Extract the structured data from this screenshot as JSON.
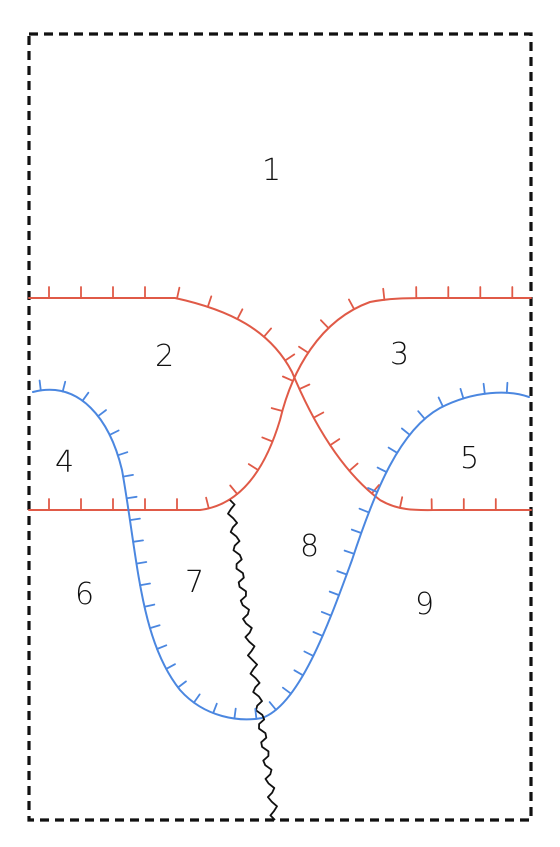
{
  "colors": {
    "border": "#111111",
    "red_curve": "#e05a47",
    "blue_curve": "#4b87e0",
    "wavy_line": "#111111",
    "background": "#ffffff"
  },
  "regions": [
    {
      "id": "region-1",
      "label": "1"
    },
    {
      "id": "region-2",
      "label": "2"
    },
    {
      "id": "region-3",
      "label": "3"
    },
    {
      "id": "region-4",
      "label": "4"
    },
    {
      "id": "region-5",
      "label": "5"
    },
    {
      "id": "region-6",
      "label": "6"
    },
    {
      "id": "region-7",
      "label": "7"
    },
    {
      "id": "region-8",
      "label": "8"
    },
    {
      "id": "region-9",
      "label": "9"
    }
  ]
}
